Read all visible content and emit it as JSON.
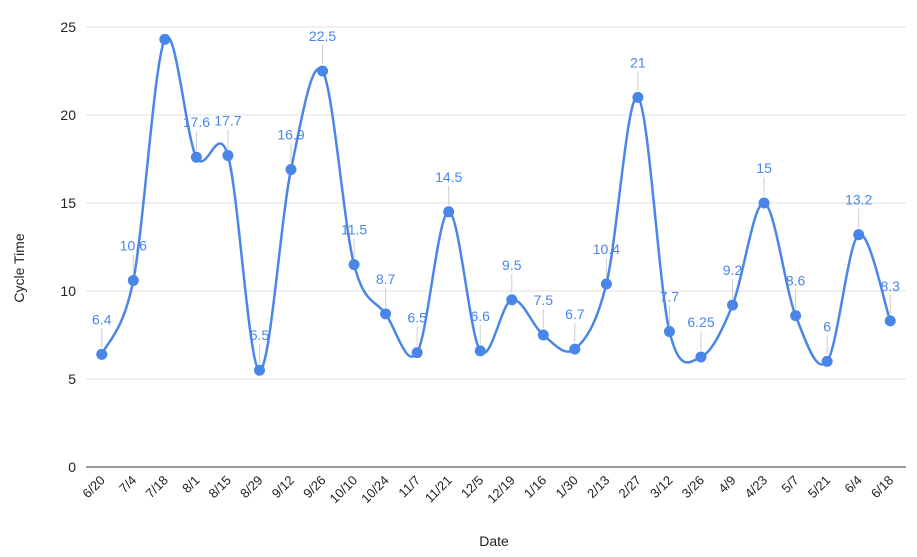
{
  "chart_data": {
    "type": "line",
    "smooth": true,
    "xlabel": "Date",
    "ylabel": "Cycle Time",
    "ylim": [
      0,
      25
    ],
    "yticks": [
      0,
      5,
      10,
      15,
      20,
      25
    ],
    "grid": true,
    "legend": "none",
    "color": "#4a86e8",
    "categories": [
      "6/20",
      "7/4",
      "7/18",
      "8/1",
      "8/15",
      "8/29",
      "9/12",
      "9/26",
      "10/10",
      "10/24",
      "11/7",
      "11/21",
      "12/5",
      "12/19",
      "1/16",
      "1/30",
      "2/13",
      "2/27",
      "3/12",
      "3/26",
      "4/9",
      "4/23",
      "5/7",
      "5/21",
      "6/4",
      "6/18"
    ],
    "values": [
      6.4,
      10.6,
      24.3,
      17.6,
      17.7,
      5.5,
      16.9,
      22.5,
      11.5,
      8.7,
      6.5,
      14.5,
      6.6,
      9.5,
      7.5,
      6.7,
      10.4,
      21,
      7.7,
      6.25,
      9.2,
      15,
      8.6,
      6,
      13.2,
      8.3
    ],
    "data_labels": [
      "6.4",
      "10.6",
      "",
      "17.6",
      "17.7",
      "5.5",
      "16.9",
      "22.5",
      "11.5",
      "8.7",
      "6.5",
      "14.5",
      "6.6",
      "9.5",
      "7.5",
      "6.7",
      "10.4",
      "21",
      "7.7",
      "6.25",
      "9.2",
      "15",
      "8.6",
      "6",
      "13.2",
      "8.3"
    ]
  }
}
